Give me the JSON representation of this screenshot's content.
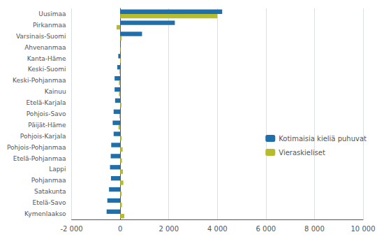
{
  "chart_data": {
    "type": "bar",
    "orientation": "horizontal",
    "categories": [
      "Uusimaa",
      "Pirkanmaa",
      "Varsinais-Suomi",
      "Ahvenanmaa",
      "Kanta-Häme",
      "Keski-Suomi",
      "Keski-Pohjanmaa",
      "Kainuu",
      "Etelä-Karjala",
      "Pohjois-Savo",
      "Päijät-Häme",
      "Pohjois-Karjala",
      "Pohjois-Pohjanmaa",
      "Etelä-Pohjanmaa",
      "Lappi",
      "Pohjanmaa",
      "Satakunta",
      "Etelä-Savo",
      "Kymenlaakso"
    ],
    "series": [
      {
        "name": "Kotimaisia kieliä puhuvat",
        "color": "#1f6fab",
        "values": [
          4200,
          2250,
          900,
          10,
          -80,
          -120,
          -230,
          -230,
          -210,
          -270,
          -310,
          -270,
          -370,
          -390,
          -420,
          -380,
          -460,
          -530,
          -560
        ]
      },
      {
        "name": "Vieraskieliset",
        "color": "#b5bd2b",
        "values": [
          4000,
          -150,
          60,
          15,
          30,
          -30,
          -50,
          -50,
          50,
          -30,
          -70,
          60,
          100,
          70,
          110,
          130,
          60,
          70,
          170
        ]
      }
    ],
    "xlim": [
      -2000,
      10000
    ],
    "xticks": [
      {
        "value": -2000,
        "label": "-2 000"
      },
      0,
      {
        "value": 2000,
        "label": "2 000"
      },
      {
        "value": 4000,
        "label": "4 000"
      },
      {
        "value": 6000,
        "label": "6 000"
      },
      {
        "value": 8000,
        "label": "8 000"
      },
      {
        "value": 10000,
        "label": "10 000"
      }
    ],
    "grid": true,
    "legend": "right"
  }
}
